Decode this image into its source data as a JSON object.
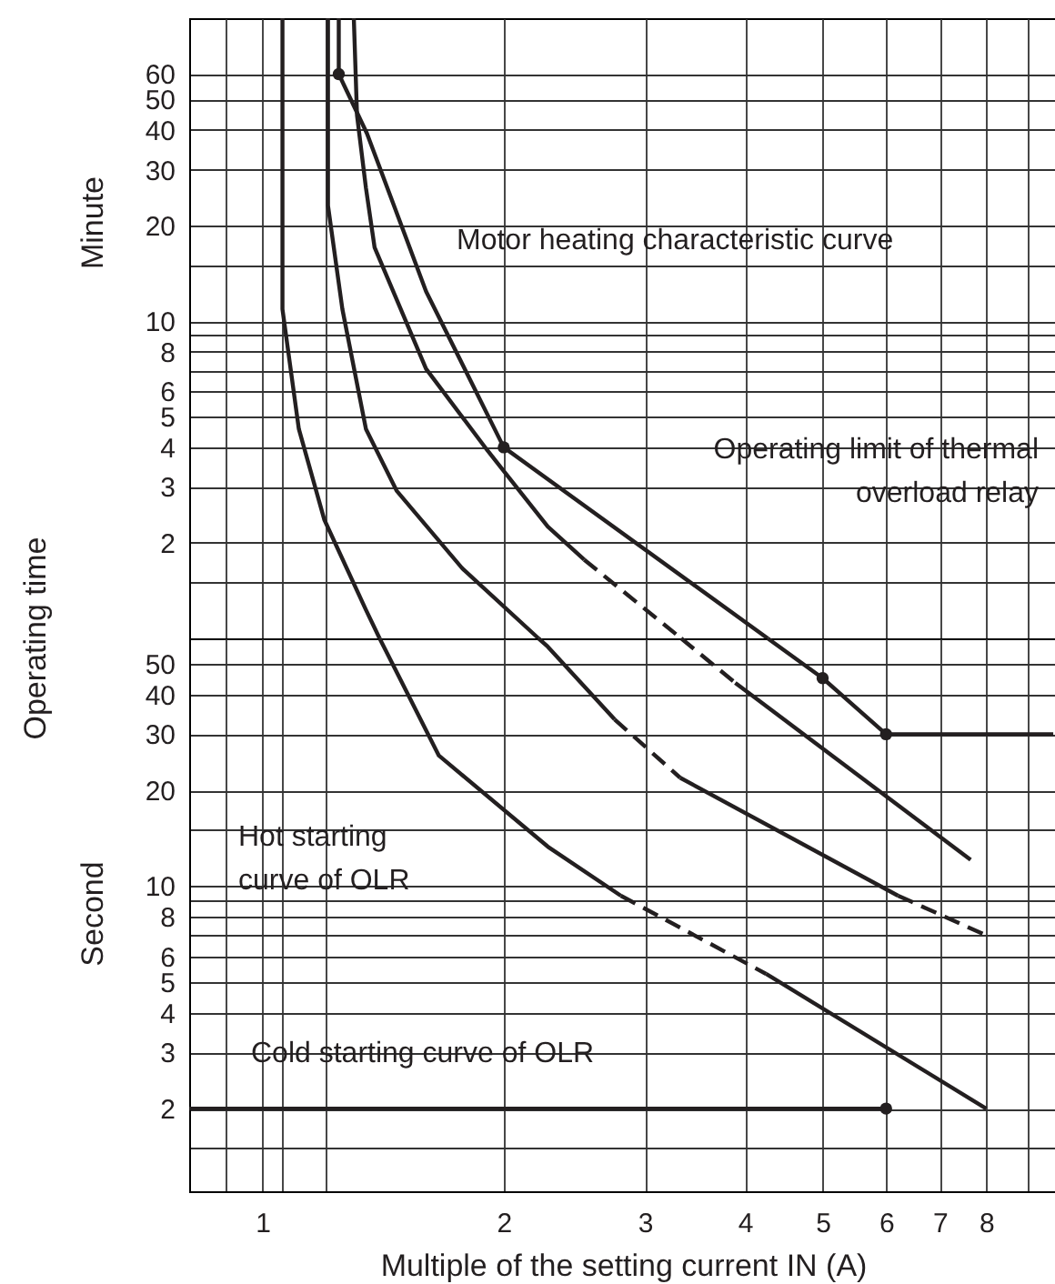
{
  "chart_data": [
    {
      "type": "line",
      "ylabel": "Minute",
      "annotations": [
        "Motor heating characteristic curve",
        "Operating limit of thermal\noverload relay",
        "Operating time"
      ],
      "series": [
        {
          "color": "#231f20",
          "line_style": "solid",
          "x": [
            1.245,
            1.245,
            1.35,
            1.6,
            2,
            4.27
          ],
          "values": [
            90,
            60,
            39,
            12.4,
            4,
            1
          ]
        },
        {
          "color": "#231f20",
          "line_style": "solid",
          "x": [
            1.3,
            1.312,
            1.346,
            1.38,
            1.6,
            1.91,
            2.27,
            2.52
          ],
          "values": [
            90,
            44.5,
            26.3,
            17.05,
            7.07,
            3.9,
            2.25,
            1.77
          ]
        },
        {
          "color": "#231f20",
          "line_style": "dashed",
          "x": [
            2.52,
            3.33
          ],
          "values": [
            1.77,
            1
          ]
        },
        {
          "color": "#231f20",
          "line_style": "solid",
          "x": [
            1.207,
            1.207,
            1.258,
            1.346,
            1.47,
            1.776,
            2.21
          ],
          "values": [
            90,
            23.1,
            10.9,
            4.57,
            2.92,
            1.66,
            1
          ]
        },
        {
          "color": "#231f20",
          "line_style": "solid",
          "x": [
            1.059,
            1.059,
            1.11,
            1.194,
            1.346,
            1.4
          ],
          "values": [
            90,
            10.9,
            4.57,
            2.37,
            1.23,
            1
          ]
        },
        {
          "type": "scatter",
          "color": "#231f20",
          "marker": "circle",
          "x": [
            1.245,
            2
          ],
          "values": [
            60,
            4
          ]
        }
      ],
      "log": "xy",
      "grid": true,
      "tick_labels": "y",
      "xlim": [
        0.81,
        9.8
      ],
      "xticks": [
        {
          "value": 0.9,
          "label": null
        },
        1,
        {
          "value": 1.06,
          "label": null
        },
        {
          "value": 1.2,
          "label": null
        },
        2,
        3,
        4,
        5,
        6,
        7,
        8,
        {
          "value": 9,
          "label": null
        }
      ],
      "ylim": [
        1,
        90
      ],
      "yticks": [
        {
          "value": 1.5,
          "label": null
        },
        2,
        3,
        4,
        5,
        6,
        {
          "value": 7,
          "label": null
        },
        8,
        {
          "value": 9,
          "label": null
        },
        10,
        {
          "value": 15,
          "label": null
        },
        20,
        30,
        40,
        50,
        60
      ]
    },
    {
      "type": "line",
      "xlabel": "Multiple of the setting current  IN (A)",
      "ylabel": "Second",
      "annotations": [
        "Hot starting\ncurve of OLR",
        "Cold starting curve of OLR"
      ],
      "series": [
        {
          "color": "#231f20",
          "line_style": "solid",
          "x": [
            4.27,
            5,
            6,
            9.7
          ],
          "values": [
            60,
            45,
            30,
            30
          ]
        },
        {
          "color": "#231f20",
          "line_style": "dashed",
          "x": [
            3.33,
            3.89
          ],
          "values": [
            60,
            43.5
          ]
        },
        {
          "color": "#231f20",
          "line_style": "solid",
          "x": [
            3.89,
            7.65
          ],
          "values": [
            43.5,
            12.1
          ]
        },
        {
          "color": "#231f20",
          "line_style": "solid",
          "x": [
            2.21,
            2.27,
            2.75
          ],
          "values": [
            60,
            56.5,
            33.4
          ]
        },
        {
          "color": "#231f20",
          "line_style": "dashed",
          "x": [
            2.75,
            3.32
          ],
          "values": [
            33.4,
            21.9
          ]
        },
        {
          "color": "#231f20",
          "line_style": "solid",
          "x": [
            3.32,
            6.21
          ],
          "values": [
            21.9,
            9.33
          ]
        },
        {
          "color": "#231f20",
          "line_style": "dashed",
          "x": [
            6.21,
            8
          ],
          "values": [
            9.33,
            7
          ]
        },
        {
          "color": "#231f20",
          "line_style": "solid",
          "x": [
            1.4,
            1.66,
            2.27,
            2.8
          ],
          "values": [
            60,
            25.7,
            13.3,
            9.33
          ]
        },
        {
          "color": "#231f20",
          "line_style": "dashed",
          "x": [
            2.8,
            4.25
          ],
          "values": [
            9.33,
            5.3
          ]
        },
        {
          "color": "#231f20",
          "line_style": "solid",
          "x": [
            4.25,
            8
          ],
          "values": [
            5.3,
            2
          ]
        },
        {
          "color": "#231f20",
          "line_style": "solid",
          "x": [
            0.81,
            6
          ],
          "values": [
            2,
            2
          ]
        },
        {
          "type": "scatter",
          "color": "#231f20",
          "marker": "circle",
          "x": [
            5,
            6,
            6
          ],
          "values": [
            45,
            30,
            2
          ]
        }
      ],
      "log": "xy",
      "grid": true,
      "xlim": [
        0.81,
        9.8
      ],
      "xticks": [
        {
          "value": 0.9,
          "label": null
        },
        1,
        {
          "value": 1.06,
          "label": null
        },
        {
          "value": 1.2,
          "label": null
        },
        2,
        3,
        4,
        5,
        6,
        7,
        8,
        {
          "value": 9,
          "label": null
        }
      ],
      "ylim": [
        1.1,
        60
      ],
      "yticks": [
        {
          "value": 1.5,
          "label": null
        },
        2,
        3,
        4,
        5,
        6,
        {
          "value": 7,
          "label": null
        },
        8,
        {
          "value": 9,
          "label": null
        },
        10,
        {
          "value": 15,
          "label": null
        },
        20,
        30,
        40,
        50
      ]
    }
  ]
}
